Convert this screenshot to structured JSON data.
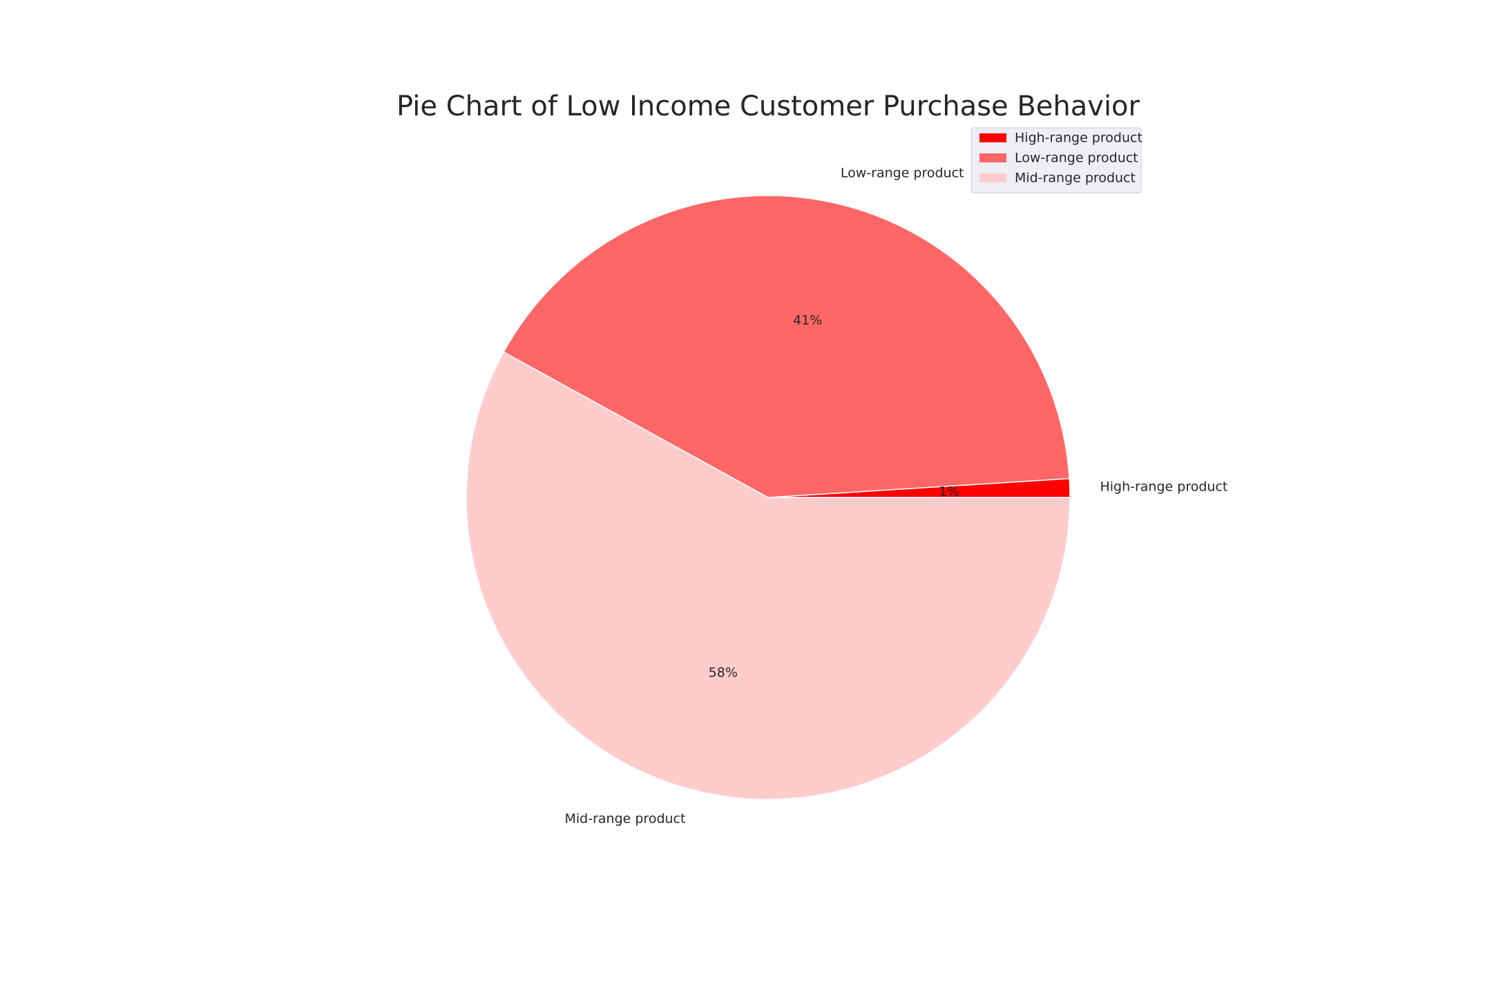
{
  "chart_data": {
    "type": "pie",
    "title": "Pie Chart of Low Income Customer Purchase Behavior",
    "slices": [
      {
        "label": "High-range product",
        "value": 1,
        "pct_label": "1%",
        "color": "#ff0000"
      },
      {
        "label": "Low-range product",
        "value": 41,
        "pct_label": "41%",
        "color": "#ff6666"
      },
      {
        "label": "Mid-range product",
        "value": 58,
        "pct_label": "58%",
        "color": "#ffcccc"
      }
    ],
    "start_angle_deg": 0,
    "direction": "counterclockwise",
    "legend": {
      "placement": "top-right",
      "entries": [
        "High-range product",
        "Low-range product",
        "Mid-range product"
      ]
    }
  }
}
